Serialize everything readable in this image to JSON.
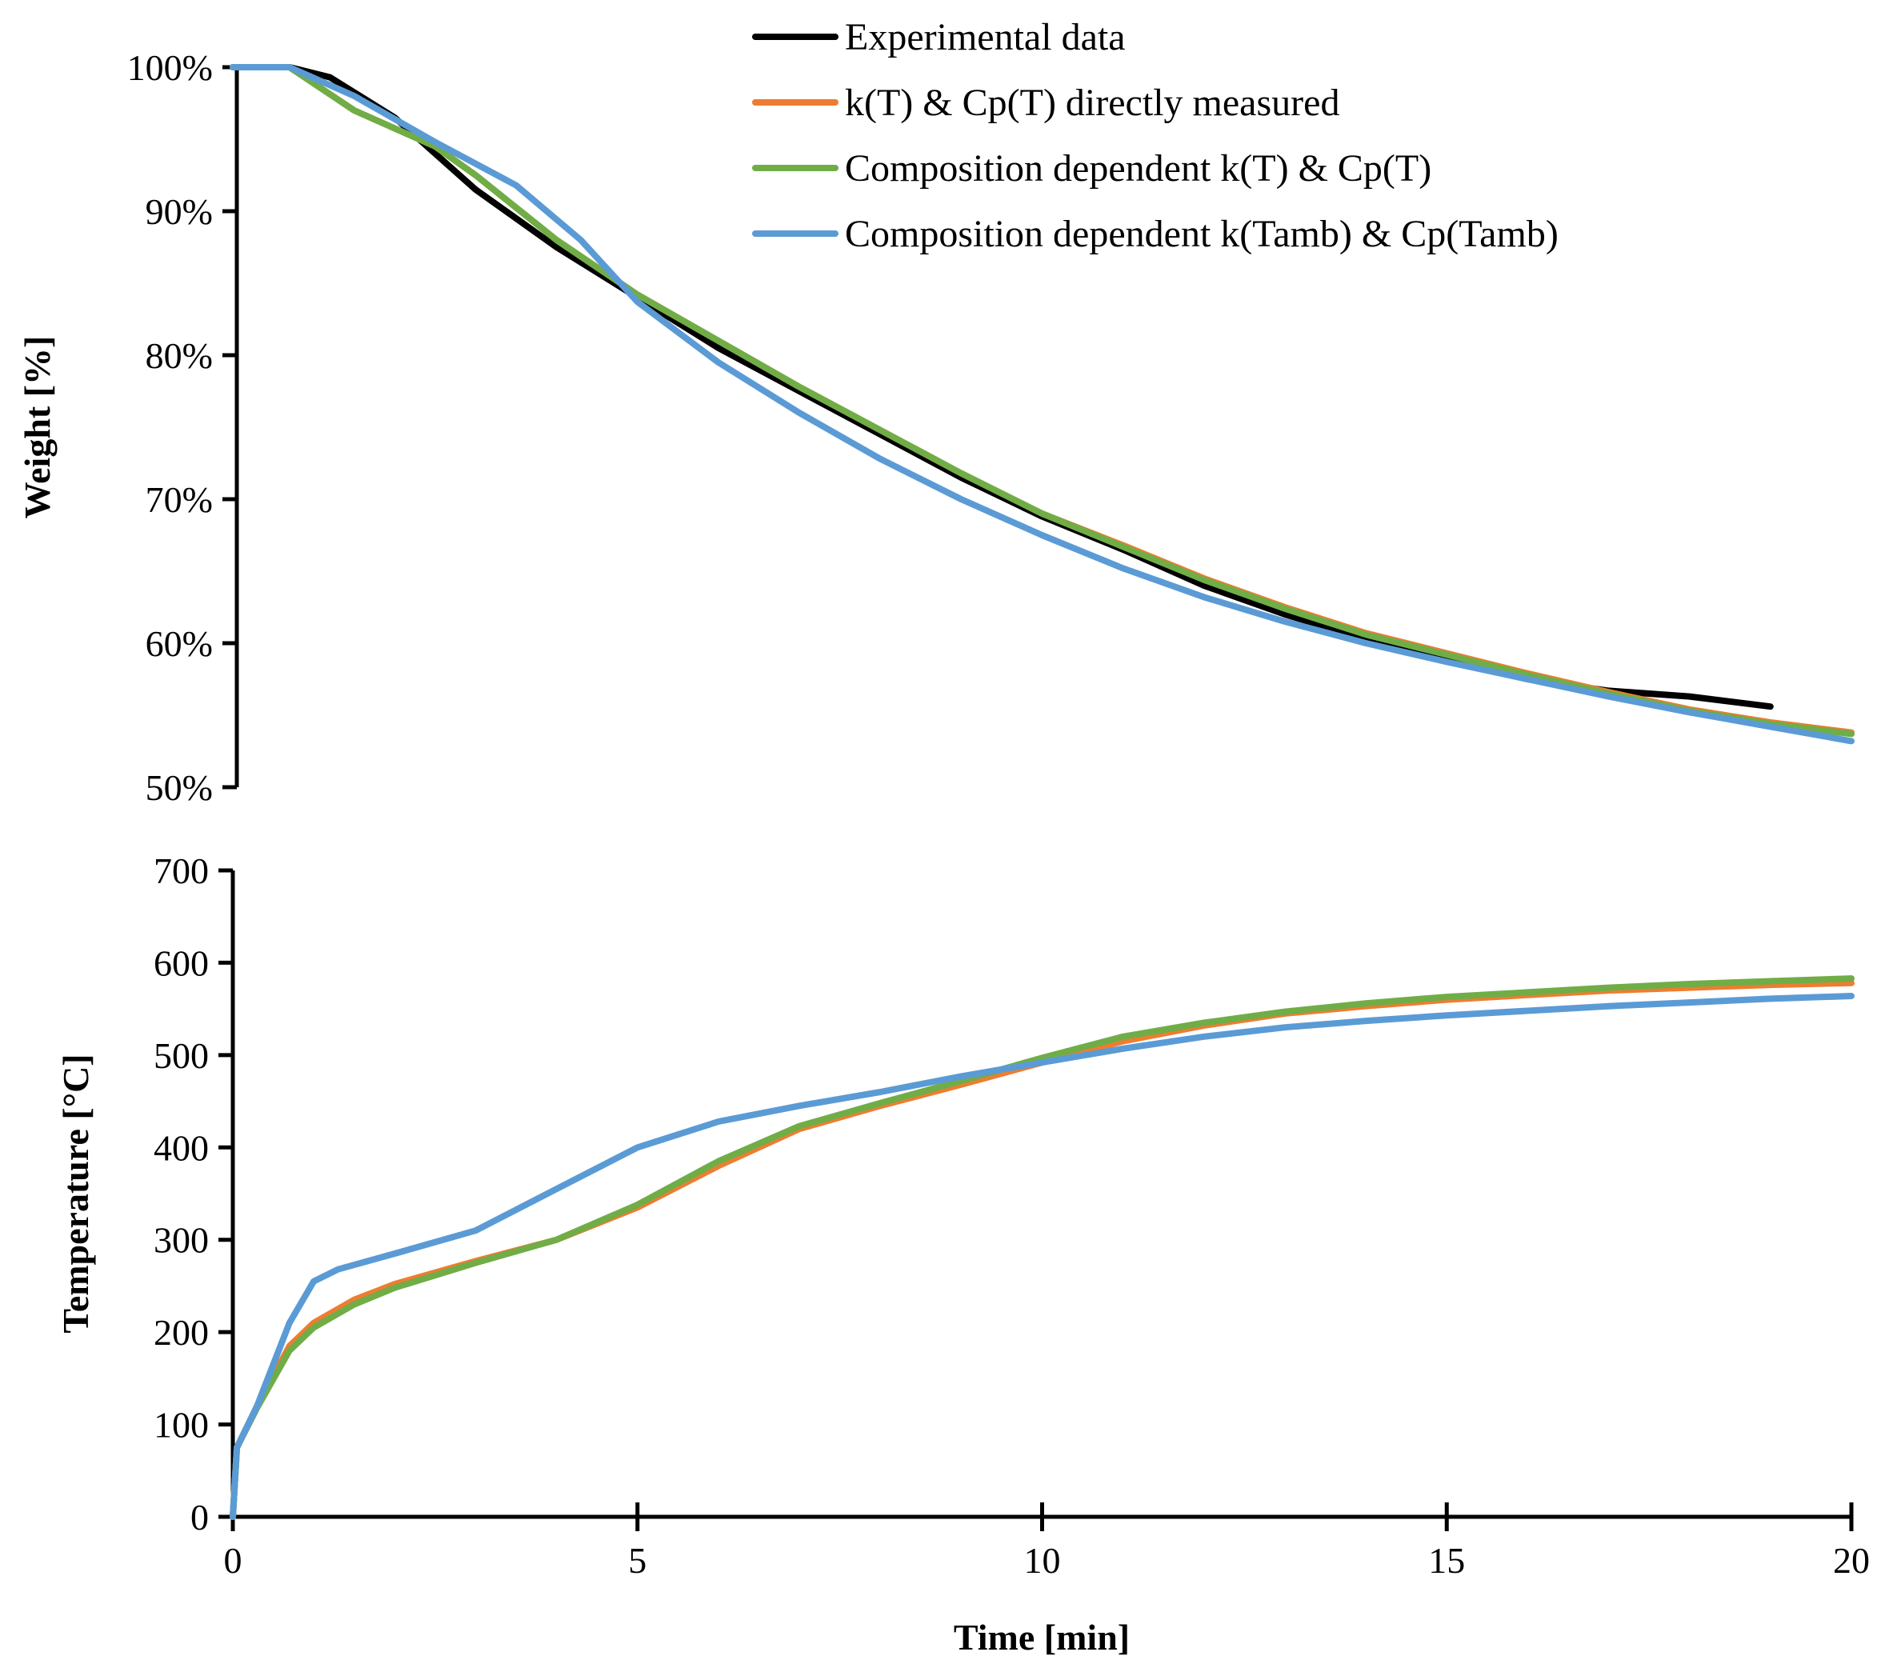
{
  "chart_data": [
    {
      "type": "line",
      "title": "",
      "xlabel": "",
      "ylabel": "Weight [%]",
      "xlim": [
        0,
        20
      ],
      "ylim": [
        50,
        100
      ],
      "yticks": [
        "50%",
        "60%",
        "70%",
        "80%",
        "90%",
        "100%"
      ],
      "legend_position": "top-right",
      "series": [
        {
          "name": "Experimental data",
          "color": "#000000",
          "points": [
            [
              0,
              100
            ],
            [
              0.7,
              100
            ],
            [
              1.2,
              99.3
            ],
            [
              2,
              96.5
            ],
            [
              3,
              91.5
            ],
            [
              4,
              87.5
            ],
            [
              5,
              84
            ],
            [
              6,
              80.5
            ],
            [
              7,
              77.5
            ],
            [
              8,
              74.5
            ],
            [
              9,
              71.5
            ],
            [
              10,
              68.8
            ],
            [
              11,
              66.5
            ],
            [
              12,
              64
            ],
            [
              13,
              62
            ],
            [
              14,
              60.3
            ],
            [
              15,
              58.8
            ],
            [
              16,
              57.5
            ],
            [
              17,
              56.7
            ],
            [
              18,
              56.3
            ],
            [
              19,
              55.6
            ]
          ]
        },
        {
          "name": "k(T) & Cp(T) directly measured",
          "color": "#ED7D31",
          "points": [
            [
              0,
              100
            ],
            [
              0.7,
              100
            ],
            [
              1.5,
              97
            ],
            [
              2.5,
              94.5
            ],
            [
              3,
              92.5
            ],
            [
              4,
              88
            ],
            [
              5,
              84.2
            ],
            [
              6,
              81
            ],
            [
              7,
              77.8
            ],
            [
              8,
              74.8
            ],
            [
              9,
              71.8
            ],
            [
              10,
              69
            ],
            [
              11,
              66.8
            ],
            [
              12,
              64.5
            ],
            [
              13,
              62.5
            ],
            [
              14,
              60.7
            ],
            [
              15,
              59.3
            ],
            [
              16,
              57.9
            ],
            [
              17,
              56.6
            ],
            [
              18,
              55.4
            ],
            [
              19,
              54.5
            ],
            [
              20,
              53.8
            ]
          ]
        },
        {
          "name": "Composition dependent k(T) & Cp(T)",
          "color": "#70AD47",
          "points": [
            [
              0,
              100
            ],
            [
              0.7,
              100
            ],
            [
              1.5,
              97
            ],
            [
              2.5,
              94.5
            ],
            [
              3,
              92.5
            ],
            [
              4,
              88
            ],
            [
              5,
              84.2
            ],
            [
              6,
              81
            ],
            [
              7,
              77.8
            ],
            [
              8,
              74.8
            ],
            [
              9,
              71.8
            ],
            [
              10,
              69
            ],
            [
              11,
              66.7
            ],
            [
              12,
              64.4
            ],
            [
              13,
              62.4
            ],
            [
              14,
              60.6
            ],
            [
              15,
              59.2
            ],
            [
              16,
              57.8
            ],
            [
              17,
              56.5
            ],
            [
              18,
              55.3
            ],
            [
              19,
              54.4
            ],
            [
              20,
              53.7
            ]
          ]
        },
        {
          "name": "Composition dependent k(Tamb) & Cp(Tamb)",
          "color": "#5B9BD5",
          "points": [
            [
              0,
              100
            ],
            [
              0.7,
              100
            ],
            [
              1.5,
              98
            ],
            [
              2.5,
              94.8
            ],
            [
              3.5,
              91.8
            ],
            [
              4.3,
              88
            ],
            [
              5,
              83.7
            ],
            [
              6,
              79.5
            ],
            [
              7,
              76
            ],
            [
              8,
              72.8
            ],
            [
              9,
              70
            ],
            [
              10,
              67.5
            ],
            [
              11,
              65.2
            ],
            [
              12,
              63.2
            ],
            [
              13,
              61.5
            ],
            [
              14,
              60
            ],
            [
              15,
              58.7
            ],
            [
              16,
              57.5
            ],
            [
              17,
              56.3
            ],
            [
              18,
              55.2
            ],
            [
              19,
              54.2
            ],
            [
              20,
              53.2
            ]
          ]
        }
      ]
    },
    {
      "type": "line",
      "title": "",
      "xlabel": "Time [min]",
      "ylabel": "Temperature [°C]",
      "xlim": [
        0,
        20
      ],
      "ylim": [
        0,
        700
      ],
      "xticks": [
        "0",
        "5",
        "10",
        "15",
        "20"
      ],
      "yticks": [
        "0",
        "100",
        "200",
        "300",
        "400",
        "500",
        "600",
        "700"
      ],
      "series": [
        {
          "name": "k(T) & Cp(T) directly measured",
          "color": "#ED7D31",
          "points": [
            [
              0,
              0
            ],
            [
              0.05,
              75
            ],
            [
              0.3,
              120
            ],
            [
              0.7,
              185
            ],
            [
              1,
              210
            ],
            [
              1.5,
              235
            ],
            [
              2,
              252
            ],
            [
              3,
              277
            ],
            [
              4,
              300
            ],
            [
              5,
              335
            ],
            [
              6,
              380
            ],
            [
              7,
              420
            ],
            [
              8,
              445
            ],
            [
              9,
              468
            ],
            [
              10,
              492
            ],
            [
              11,
              515
            ],
            [
              12,
              532
            ],
            [
              13,
              545
            ],
            [
              14,
              553
            ],
            [
              15,
              560
            ],
            [
              16,
              565
            ],
            [
              17,
              570
            ],
            [
              18,
              573
            ],
            [
              19,
              576
            ],
            [
              20,
              578
            ]
          ]
        },
        {
          "name": "Composition dependent k(T) & Cp(T)",
          "color": "#70AD47",
          "points": [
            [
              0,
              0
            ],
            [
              0.05,
              75
            ],
            [
              0.3,
              118
            ],
            [
              0.7,
              180
            ],
            [
              1,
              205
            ],
            [
              1.5,
              230
            ],
            [
              2,
              248
            ],
            [
              3,
              275
            ],
            [
              4,
              300
            ],
            [
              5,
              338
            ],
            [
              6,
              385
            ],
            [
              7,
              423
            ],
            [
              8,
              448
            ],
            [
              9,
              472
            ],
            [
              10,
              497
            ],
            [
              11,
              520
            ],
            [
              12,
              535
            ],
            [
              13,
              547
            ],
            [
              14,
              556
            ],
            [
              15,
              563
            ],
            [
              16,
              568
            ],
            [
              17,
              573
            ],
            [
              18,
              577
            ],
            [
              19,
              580
            ],
            [
              20,
              583
            ]
          ]
        },
        {
          "name": "Composition dependent k(Tamb) & Cp(Tamb)",
          "color": "#5B9BD5",
          "points": [
            [
              0,
              0
            ],
            [
              0.05,
              75
            ],
            [
              0.3,
              120
            ],
            [
              0.7,
              210
            ],
            [
              1,
              255
            ],
            [
              1.3,
              268
            ],
            [
              2,
              285
            ],
            [
              3,
              310
            ],
            [
              4,
              355
            ],
            [
              5,
              400
            ],
            [
              6,
              428
            ],
            [
              7,
              445
            ],
            [
              8,
              460
            ],
            [
              9,
              477
            ],
            [
              10,
              492
            ],
            [
              11,
              507
            ],
            [
              12,
              520
            ],
            [
              13,
              530
            ],
            [
              14,
              537
            ],
            [
              15,
              543
            ],
            [
              16,
              548
            ],
            [
              17,
              553
            ],
            [
              18,
              557
            ],
            [
              19,
              561
            ],
            [
              20,
              564
            ]
          ]
        }
      ]
    }
  ]
}
